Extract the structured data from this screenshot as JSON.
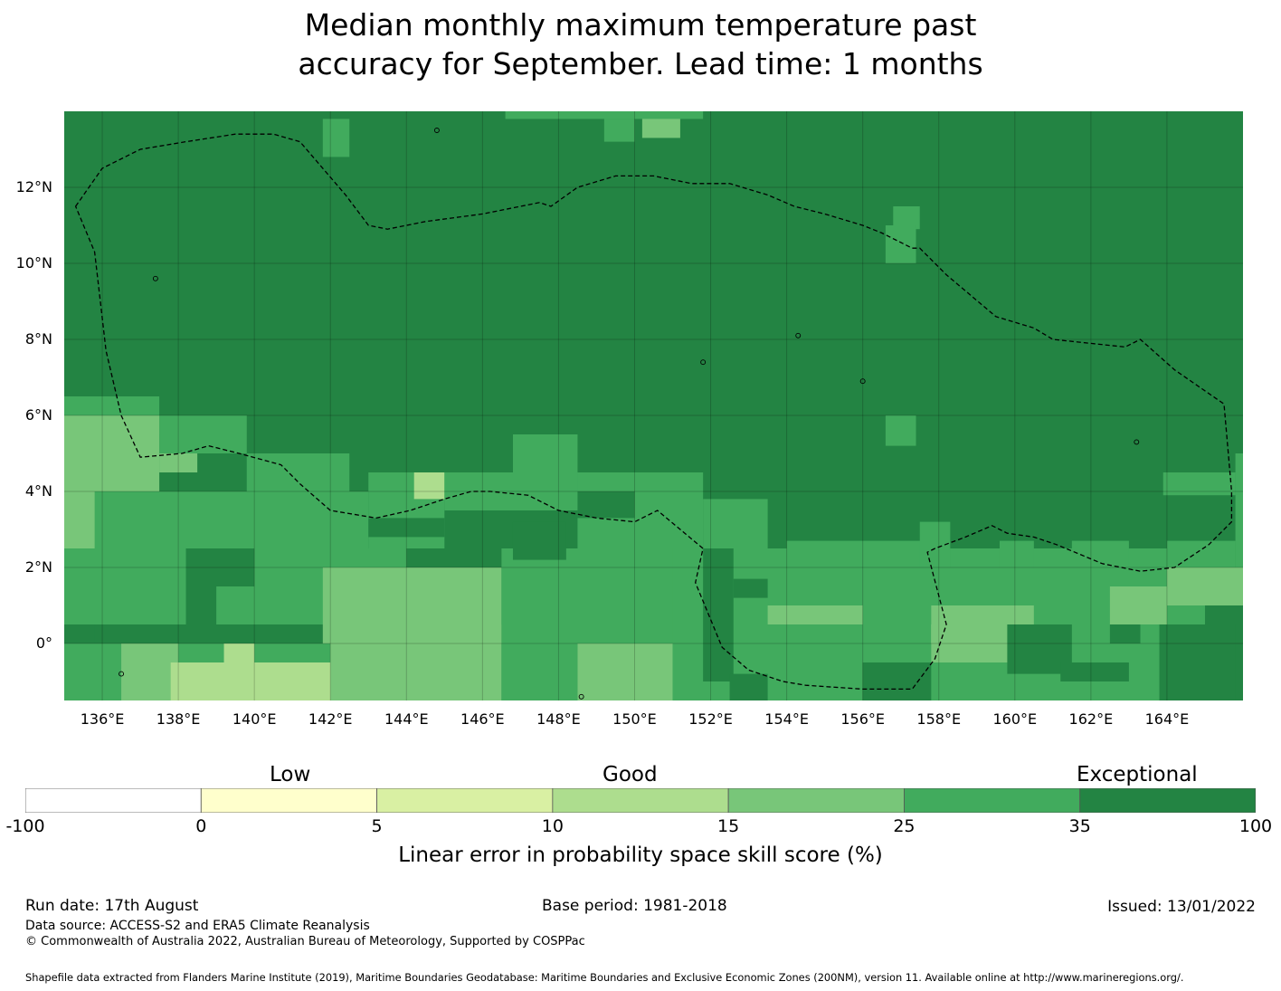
{
  "title": {
    "line1": "Median monthly maximum temperature past",
    "line2": "accuracy for September. Lead time: 1 months"
  },
  "map": {
    "lon_range": [
      135,
      166
    ],
    "lat_range": [
      -1.5,
      14
    ],
    "lon_ticks": [
      "136°E",
      "138°E",
      "140°E",
      "142°E",
      "144°E",
      "146°E",
      "148°E",
      "150°E",
      "152°E",
      "154°E",
      "156°E",
      "158°E",
      "160°E",
      "162°E",
      "164°E"
    ],
    "lat_ticks": [
      "12°N",
      "10°N",
      "8°N",
      "6°N",
      "4°N",
      "2°N",
      "0°"
    ],
    "default_class": 6,
    "patches": [
      {
        "lon": [
          135,
          137.5
        ],
        "lat": [
          5.5,
          6.5
        ],
        "class": 5
      },
      {
        "lon": [
          137.5,
          139.8
        ],
        "lat": [
          5.0,
          6.0
        ],
        "class": 5
      },
      {
        "lon": [
          139.8,
          142.5
        ],
        "lat": [
          4.0,
          5.0
        ],
        "class": 5
      },
      {
        "lon": [
          135,
          137.5
        ],
        "lat": [
          4.0,
          6.0
        ],
        "class": 4
      },
      {
        "lon": [
          137.5,
          138.5
        ],
        "lat": [
          4.5,
          5.0
        ],
        "class": 4
      },
      {
        "lon": [
          135,
          143
        ],
        "lat": [
          2.5,
          4.0
        ],
        "class": 5
      },
      {
        "lon": [
          135,
          135.8
        ],
        "lat": [
          2.5,
          4.0
        ],
        "class": 4
      },
      {
        "lon": [
          143,
          145
        ],
        "lat": [
          2.5,
          4.5
        ],
        "class": 5
      },
      {
        "lon": [
          144.2,
          145
        ],
        "lat": [
          3.8,
          4.5
        ],
        "class": 3
      },
      {
        "lon": [
          145,
          149
        ],
        "lat": [
          3.5,
          4.5
        ],
        "class": 5
      },
      {
        "lon": [
          146.8,
          148.5
        ],
        "lat": [
          4.5,
          5.5
        ],
        "class": 5
      },
      {
        "lon": [
          148.5,
          151.8
        ],
        "lat": [
          2.5,
          4.5
        ],
        "class": 5
      },
      {
        "lon": [
          151.8,
          153.5
        ],
        "lat": [
          2.5,
          3.8
        ],
        "class": 5
      },
      {
        "lon": [
          135,
          144
        ],
        "lat": [
          0.5,
          2.5
        ],
        "class": 5
      },
      {
        "lon": [
          141.8,
          145
        ],
        "lat": [
          -0.5,
          2.0
        ],
        "class": 4
      },
      {
        "lon": [
          144,
          146.5
        ],
        "lat": [
          0.5,
          2.0
        ],
        "class": 4
      },
      {
        "lon": [
          146.5,
          151.8
        ],
        "lat": [
          0.0,
          2.5
        ],
        "class": 5
      },
      {
        "lon": [
          135,
          142
        ],
        "lat": [
          -1.5,
          0.0
        ],
        "class": 5
      },
      {
        "lon": [
          136.5,
          138
        ],
        "lat": [
          -1.5,
          0.0
        ],
        "class": 4
      },
      {
        "lon": [
          137.8,
          143.5
        ],
        "lat": [
          -1.5,
          -0.5
        ],
        "class": 3
      },
      {
        "lon": [
          139.2,
          140
        ],
        "lat": [
          -1.5,
          0.0
        ],
        "class": 3
      },
      {
        "lon": [
          142,
          146.5
        ],
        "lat": [
          -1.5,
          0.5
        ],
        "class": 4
      },
      {
        "lon": [
          146.5,
          148.5
        ],
        "lat": [
          -1.5,
          0.0
        ],
        "class": 5
      },
      {
        "lon": [
          148.5,
          151
        ],
        "lat": [
          -1.5,
          0.0
        ],
        "class": 4
      },
      {
        "lon": [
          151,
          165
        ],
        "lat": [
          -1.5,
          2.5
        ],
        "class": 5
      },
      {
        "lon": [
          153.5,
          156
        ],
        "lat": [
          0.5,
          1.0
        ],
        "class": 4
      },
      {
        "lon": [
          157.8,
          158.4
        ],
        "lat": [
          0.0,
          0.5
        ],
        "class": 3
      },
      {
        "lon": [
          157.8,
          160.5
        ],
        "lat": [
          -0.5,
          1.0
        ],
        "class": 4
      },
      {
        "lon": [
          162.5,
          164
        ],
        "lat": [
          0.5,
          1.5
        ],
        "class": 4
      },
      {
        "lon": [
          164,
          166
        ],
        "lat": [
          1.0,
          2.0
        ],
        "class": 4
      },
      {
        "lon": [
          156.6,
          157.4
        ],
        "lat": [
          5.2,
          6.0
        ],
        "class": 5
      },
      {
        "lon": [
          154,
          158
        ],
        "lat": [
          2.0,
          2.7
        ],
        "class": 5
      },
      {
        "lon": [
          157.5,
          158.3
        ],
        "lat": [
          2.0,
          3.2
        ],
        "class": 5
      },
      {
        "lon": [
          159.6,
          160.5
        ],
        "lat": [
          2.0,
          2.7
        ],
        "class": 5
      },
      {
        "lon": [
          161.5,
          163
        ],
        "lat": [
          2.0,
          2.7
        ],
        "class": 5
      },
      {
        "lon": [
          164,
          165.8
        ],
        "lat": [
          2.0,
          2.7
        ],
        "class": 5
      },
      {
        "lon": [
          165.8,
          166
        ],
        "lat": [
          2.0,
          5.0
        ],
        "class": 5
      },
      {
        "lon": [
          163.9,
          165.8
        ],
        "lat": [
          3.9,
          4.5
        ],
        "class": 5
      },
      {
        "lon": [
          141.8,
          142.5
        ],
        "lat": [
          12.8,
          13.8
        ],
        "class": 5
      },
      {
        "lon": [
          150.2,
          151.2
        ],
        "lat": [
          13.3,
          14.0
        ],
        "class": 4
      },
      {
        "lon": [
          146.6,
          151.8
        ],
        "lat": [
          13.8,
          14.0
        ],
        "class": 5
      },
      {
        "lon": [
          149.2,
          150
        ],
        "lat": [
          13.2,
          13.8
        ],
        "class": 5
      },
      {
        "lon": [
          156.8,
          157.5
        ],
        "lat": [
          10.9,
          11.5
        ],
        "class": 5
      },
      {
        "lon": [
          156.6,
          157.4
        ],
        "lat": [
          10.0,
          11.0
        ],
        "class": 5
      }
    ],
    "dark_patches": [
      {
        "lon": [
          138.2,
          140
        ],
        "lat": [
          1.5,
          2.5
        ]
      },
      {
        "lon": [
          138.2,
          139
        ],
        "lat": [
          0.5,
          1.5
        ]
      },
      {
        "lon": [
          143,
          145
        ],
        "lat": [
          2.8,
          3.3
        ]
      },
      {
        "lon": [
          146.8,
          148.2
        ],
        "lat": [
          2.2,
          3.2
        ]
      },
      {
        "lon": [
          148.5,
          150
        ],
        "lat": [
          3.3,
          4.0
        ]
      },
      {
        "lon": [
          151.8,
          152.6
        ],
        "lat": [
          -1.0,
          2.5
        ]
      },
      {
        "lon": [
          152.6,
          153.5
        ],
        "lat": [
          1.2,
          1.7
        ]
      },
      {
        "lon": [
          152.5,
          153.5
        ],
        "lat": [
          -1.5,
          -0.8
        ]
      },
      {
        "lon": [
          156,
          157.8
        ],
        "lat": [
          -1.5,
          -0.5
        ]
      },
      {
        "lon": [
          159.8,
          161.5
        ],
        "lat": [
          -0.8,
          0.5
        ]
      },
      {
        "lon": [
          161.2,
          163
        ],
        "lat": [
          -1.0,
          -0.5
        ]
      },
      {
        "lon": [
          162.5,
          163.3
        ],
        "lat": [
          0.0,
          0.5
        ]
      },
      {
        "lon": [
          163.8,
          165.8
        ],
        "lat": [
          -1.5,
          0.5
        ]
      },
      {
        "lon": [
          135,
          135.8
        ],
        "lat": [
          0.0,
          0.5
        ]
      }
    ],
    "eez_boundary": [
      [
        135.3,
        11.5
      ],
      [
        136,
        12.5
      ],
      [
        137,
        13.0
      ],
      [
        138.2,
        13.2
      ],
      [
        139.5,
        13.4
      ],
      [
        140.5,
        13.4
      ],
      [
        141.2,
        13.2
      ],
      [
        142.4,
        11.8
      ],
      [
        143,
        11.0
      ],
      [
        143.5,
        10.9
      ],
      [
        144.5,
        11.1
      ],
      [
        146,
        11.3
      ],
      [
        147.5,
        11.6
      ],
      [
        147.8,
        11.5
      ],
      [
        148.5,
        12.0
      ],
      [
        149.5,
        12.3
      ],
      [
        150.5,
        12.3
      ],
      [
        151.5,
        12.1
      ],
      [
        152.5,
        12.1
      ],
      [
        153.5,
        11.8
      ],
      [
        154.2,
        11.5
      ],
      [
        155,
        11.3
      ],
      [
        156,
        11.0
      ],
      [
        156.5,
        10.8
      ],
      [
        157.3,
        10.4
      ],
      [
        157.5,
        10.4
      ],
      [
        158.2,
        9.7
      ],
      [
        159.5,
        8.6
      ],
      [
        160.5,
        8.3
      ],
      [
        161,
        8.0
      ],
      [
        162.9,
        7.8
      ],
      [
        163.3,
        8.0
      ],
      [
        164.2,
        7.2
      ],
      [
        165.5,
        6.3
      ],
      [
        165.7,
        4.0
      ],
      [
        165.7,
        3.2
      ],
      [
        165.1,
        2.6
      ],
      [
        164.2,
        2.0
      ],
      [
        163.3,
        1.9
      ],
      [
        162.3,
        2.1
      ],
      [
        161.1,
        2.6
      ],
      [
        160.5,
        2.8
      ],
      [
        159.8,
        2.9
      ],
      [
        159.4,
        3.1
      ],
      [
        158.7,
        2.8
      ],
      [
        157.9,
        2.5
      ],
      [
        157.7,
        2.4
      ],
      [
        158.2,
        0.5
      ],
      [
        157.9,
        -0.4
      ],
      [
        157.3,
        -1.2
      ],
      [
        156,
        -1.2
      ],
      [
        154.5,
        -1.1
      ],
      [
        153.9,
        -1.0
      ],
      [
        153,
        -0.7
      ],
      [
        152.3,
        -0.1
      ],
      [
        151.6,
        1.6
      ],
      [
        151.8,
        2.5
      ],
      [
        151.2,
        3.0
      ],
      [
        150.6,
        3.5
      ],
      [
        150,
        3.2
      ],
      [
        149,
        3.3
      ],
      [
        148,
        3.5
      ],
      [
        147.2,
        3.9
      ],
      [
        146.2,
        4.0
      ],
      [
        145.7,
        4.0
      ],
      [
        145,
        3.8
      ],
      [
        144.1,
        3.5
      ],
      [
        143.2,
        3.3
      ],
      [
        142,
        3.5
      ],
      [
        141.2,
        4.2
      ],
      [
        140.7,
        4.7
      ],
      [
        139.6,
        5.0
      ],
      [
        138.8,
        5.2
      ],
      [
        138.1,
        5.0
      ],
      [
        137,
        4.9
      ],
      [
        136.5,
        6.0
      ],
      [
        136.1,
        7.7
      ],
      [
        135.8,
        10.3
      ],
      [
        135.3,
        11.5
      ]
    ]
  },
  "colorbar": {
    "colors": [
      "#ffffff",
      "#ffffcc",
      "#d9f0a3",
      "#addd8e",
      "#78c679",
      "#41ab5d",
      "#238443"
    ],
    "ticks": [
      "-100",
      "0",
      "5",
      "10",
      "15",
      "25",
      "35",
      "100"
    ],
    "categories": [
      "Low",
      "Good",
      "Exceptional"
    ],
    "label": "Linear error in probability space skill score (%)"
  },
  "footer": {
    "run_date": "Run date: 17th August",
    "base_period": "Base period: 1981-2018",
    "issued": "Issued: 13/01/2022",
    "data_source": "Data source: ACCESS-S2 and ERA5 Climate Reanalysis",
    "copyright": "© Commonwealth of Australia 2022, Australian Bureau of Meteorology, Supported by COSPPac",
    "shapefile": "Shapefile data extracted from Flanders Marine Institute (2019), Maritime Boundaries Geodatabase: Maritime Boundaries and Exclusive Economic Zones (200NM), version 11. Available online at http://www.marineregions.org/."
  }
}
